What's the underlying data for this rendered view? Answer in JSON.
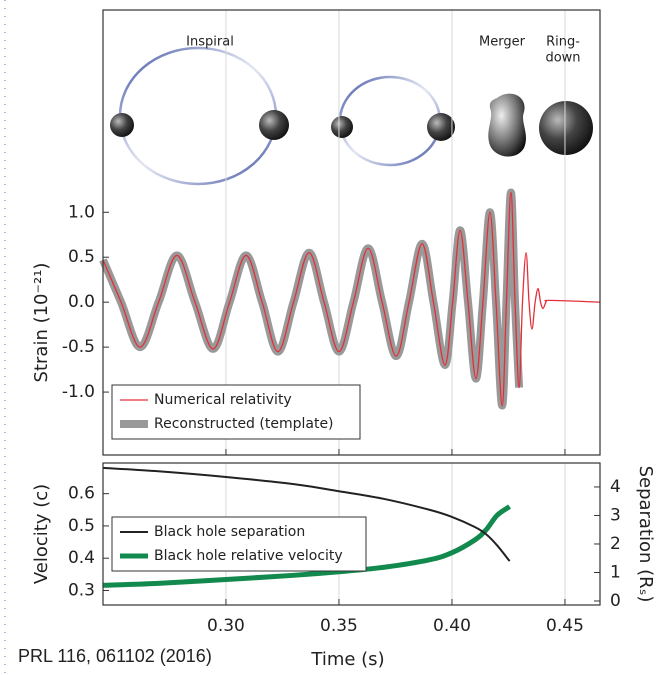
{
  "chart_data": [
    {
      "type": "line",
      "ylabel": "Strain (10⁻²¹)",
      "annotations": [
        "Inspiral",
        "Merger",
        "Ring-",
        "down"
      ],
      "x": [
        0.2456,
        0.2536,
        0.262,
        0.2702,
        0.2783,
        0.2863,
        0.2943,
        0.3016,
        0.3089,
        0.316,
        0.323,
        0.3299,
        0.3368,
        0.3434,
        0.35,
        0.3564,
        0.3629,
        0.3691,
        0.3753,
        0.381,
        0.3868,
        0.3918,
        0.3969,
        0.4003,
        0.4036,
        0.4071,
        0.4106,
        0.4137,
        0.4168,
        0.4195,
        0.4222,
        0.4241,
        0.4261,
        0.4279,
        0.4297,
        0.4312,
        0.4328,
        0.4341,
        0.4354,
        0.4368,
        0.4381,
        0.4392,
        0.4403,
        0.4416,
        0.4434,
        0.4655
      ],
      "series": [
        {
          "name": "Numerical relativity",
          "color": "#e2303a",
          "values": [
            0.47,
            0,
            -0.5,
            0,
            0.52,
            0,
            -0.52,
            0,
            0.52,
            0,
            -0.55,
            0,
            0.55,
            0,
            -0.55,
            0,
            0.6,
            0,
            -0.6,
            0,
            0.65,
            0,
            -0.7,
            0,
            0.8,
            0,
            -0.85,
            0,
            1.0,
            0,
            -1.15,
            0,
            1.22,
            0,
            -0.95,
            0,
            0.55,
            0,
            -0.3,
            0,
            0.15,
            0,
            -0.07,
            0,
            0.02,
            0
          ]
        },
        {
          "name": "Reconstructed (template)",
          "color": "#999999",
          "values": [
            0.47,
            0,
            -0.5,
            0,
            0.52,
            0,
            -0.52,
            0,
            0.52,
            0,
            -0.55,
            0,
            0.55,
            0,
            -0.55,
            0,
            0.6,
            0,
            -0.6,
            0,
            0.65,
            0,
            -0.7,
            0,
            0.8,
            0,
            -0.85,
            0,
            1.0,
            0,
            -1.15,
            0,
            1.22,
            0,
            -0.95,
            null,
            null,
            null,
            null,
            null,
            null,
            null,
            null,
            null,
            null,
            null
          ]
        }
      ],
      "xlim": [
        0.2456,
        0.4655
      ],
      "xticks": [
        0.3,
        0.35,
        0.4,
        0.45
      ],
      "ylim": [
        -1.7,
        3.25
      ],
      "yticks": [
        {
          "value": 1.0,
          "label": "1.0"
        },
        0.5,
        {
          "value": 0,
          "label": "0.0"
        },
        -0.5,
        {
          "value": -1.0,
          "label": "-1.0"
        }
      ],
      "grid": "x",
      "legend": "lower left"
    },
    {
      "type": "line",
      "xlabel": "Time (s)",
      "ylabel": "Velocity (c)",
      "y2label": "Separation (Rₛ)",
      "x": [
        0.2456,
        0.27,
        0.3,
        0.33,
        0.35,
        0.37,
        0.39,
        0.4,
        0.41,
        0.415,
        0.42,
        0.4255
      ],
      "series": [
        {
          "name": "Black hole separation",
          "color": "#222222",
          "axis": "y2",
          "values": [
            4.67,
            4.55,
            4.35,
            4.1,
            3.85,
            3.58,
            3.2,
            2.95,
            2.6,
            2.35,
            1.95,
            1.4
          ]
        },
        {
          "name": "Black hole relative velocity",
          "color": "#128a4e",
          "values": [
            0.316,
            0.322,
            0.334,
            0.347,
            0.358,
            0.372,
            0.395,
            0.417,
            0.456,
            0.487,
            0.533,
            0.56
          ]
        }
      ],
      "xlim": [
        0.2456,
        0.4655
      ],
      "xticks": [
        {
          "value": 0.3,
          "label": "0.30"
        },
        {
          "value": 0.35,
          "label": "0.35"
        },
        {
          "value": 0.4,
          "label": "0.40"
        },
        {
          "value": 0.45,
          "label": "0.45"
        }
      ],
      "ylim": [
        0.255,
        0.695
      ],
      "yticks": [
        0.3,
        0.4,
        0.5,
        0.6
      ],
      "y2lim": [
        -0.14,
        4.84
      ],
      "y2ticks": [
        0,
        1,
        2,
        3,
        4
      ],
      "grid": "x",
      "legend": "center left"
    }
  ],
  "citation": "PRL 116, 061102 (2016)"
}
